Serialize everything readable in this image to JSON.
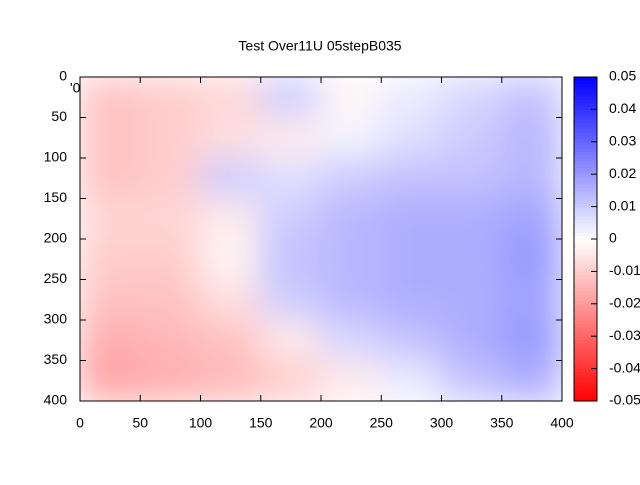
{
  "chart_data": {
    "type": "heatmap",
    "title": "Test Over11U 05stepB035",
    "note": "'0",
    "xlim": [
      0,
      400
    ],
    "xticks": [
      0,
      50,
      100,
      150,
      200,
      250,
      300,
      350,
      400
    ],
    "ylim": [
      400,
      0
    ],
    "yticks": [
      0,
      50,
      100,
      150,
      200,
      250,
      300,
      350,
      400
    ],
    "zlim": [
      -0.05,
      0.05
    ],
    "zticks": [
      0.05,
      0.04,
      0.03,
      0.02,
      0.01,
      0,
      -0.01,
      -0.02,
      -0.03,
      -0.04,
      -0.05
    ],
    "colormap": [
      "#ff0000",
      "#ffffff",
      "#0000ff"
    ],
    "z": [
      [
        -0.012,
        -0.01,
        -0.008,
        0.01,
        -0.002,
        0.004,
        0.008,
        0.012
      ],
      [
        -0.012,
        -0.01,
        -0.006,
        -0.004,
        0.002,
        0.006,
        0.01,
        0.014
      ],
      [
        -0.012,
        -0.01,
        0.01,
        0.006,
        0.01,
        0.012,
        0.012,
        0.014
      ],
      [
        -0.008,
        -0.008,
        -0.004,
        0.01,
        0.014,
        0.016,
        0.016,
        0.018
      ],
      [
        -0.01,
        -0.01,
        -0.002,
        0.012,
        0.014,
        0.016,
        0.016,
        0.02
      ],
      [
        -0.012,
        -0.012,
        -0.006,
        0.01,
        0.014,
        0.016,
        0.016,
        0.018
      ],
      [
        -0.016,
        -0.014,
        -0.012,
        -0.004,
        0.008,
        0.012,
        0.016,
        0.02
      ],
      [
        -0.018,
        -0.016,
        -0.014,
        -0.01,
        -0.004,
        0.004,
        0.012,
        0.016
      ]
    ]
  }
}
